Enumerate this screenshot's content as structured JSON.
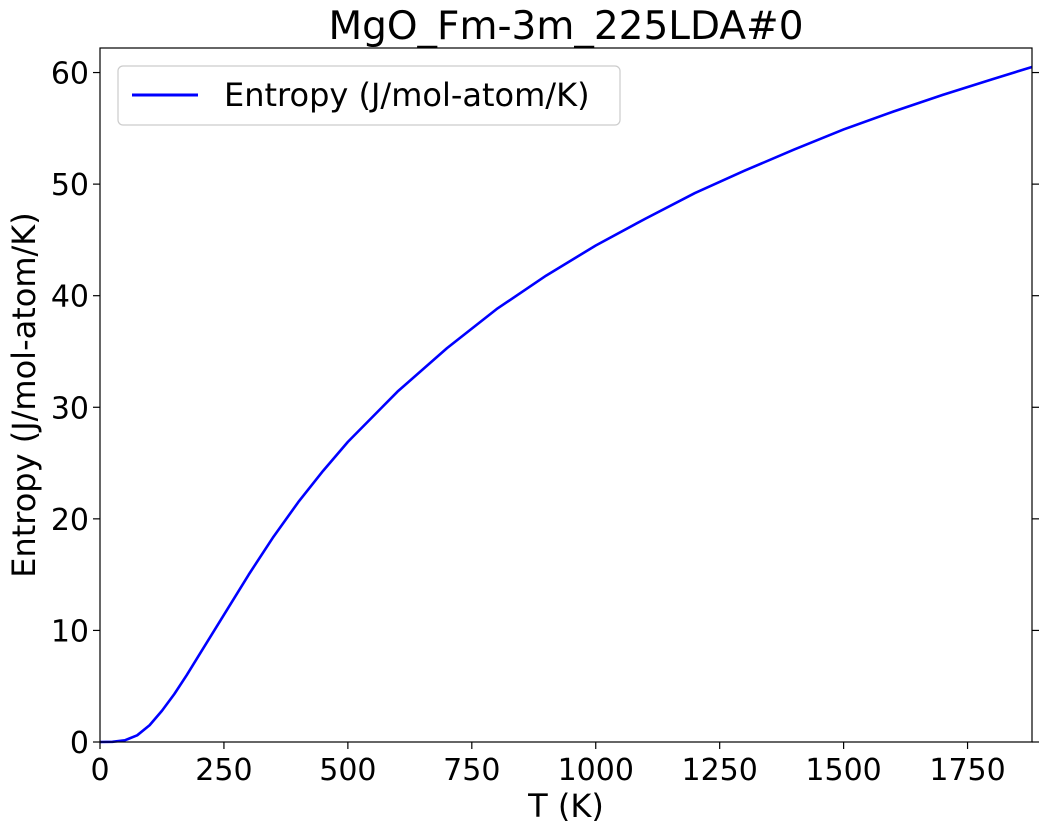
{
  "chart_data": {
    "type": "line",
    "title": "MgO_Fm-3m_225LDA#0",
    "xlabel": "T (K)",
    "ylabel": "Entropy (J/mol-atom/K)",
    "xlim": [
      0,
      1880
    ],
    "ylim": [
      0,
      62.2
    ],
    "xticks": [
      0,
      250,
      500,
      750,
      1000,
      1250,
      1500,
      1750
    ],
    "yticks": [
      0,
      10,
      20,
      30,
      40,
      50,
      60
    ],
    "grid": false,
    "legend_position": "top-left",
    "series": [
      {
        "name": "Entropy (J/mol-atom/K)",
        "color": "#0000ff",
        "x": [
          0,
          25,
          50,
          75,
          100,
          125,
          150,
          175,
          200,
          250,
          300,
          350,
          400,
          450,
          500,
          600,
          700,
          800,
          900,
          1000,
          1100,
          1200,
          1300,
          1400,
          1500,
          1600,
          1700,
          1800,
          1880
        ],
        "y": [
          0,
          0.02,
          0.15,
          0.6,
          1.5,
          2.8,
          4.3,
          6.0,
          7.8,
          11.4,
          15.0,
          18.4,
          21.5,
          24.3,
          26.9,
          31.4,
          35.3,
          38.8,
          41.8,
          44.5,
          46.9,
          49.2,
          51.2,
          53.1,
          54.9,
          56.5,
          58.0,
          59.4,
          60.5
        ]
      }
    ]
  }
}
